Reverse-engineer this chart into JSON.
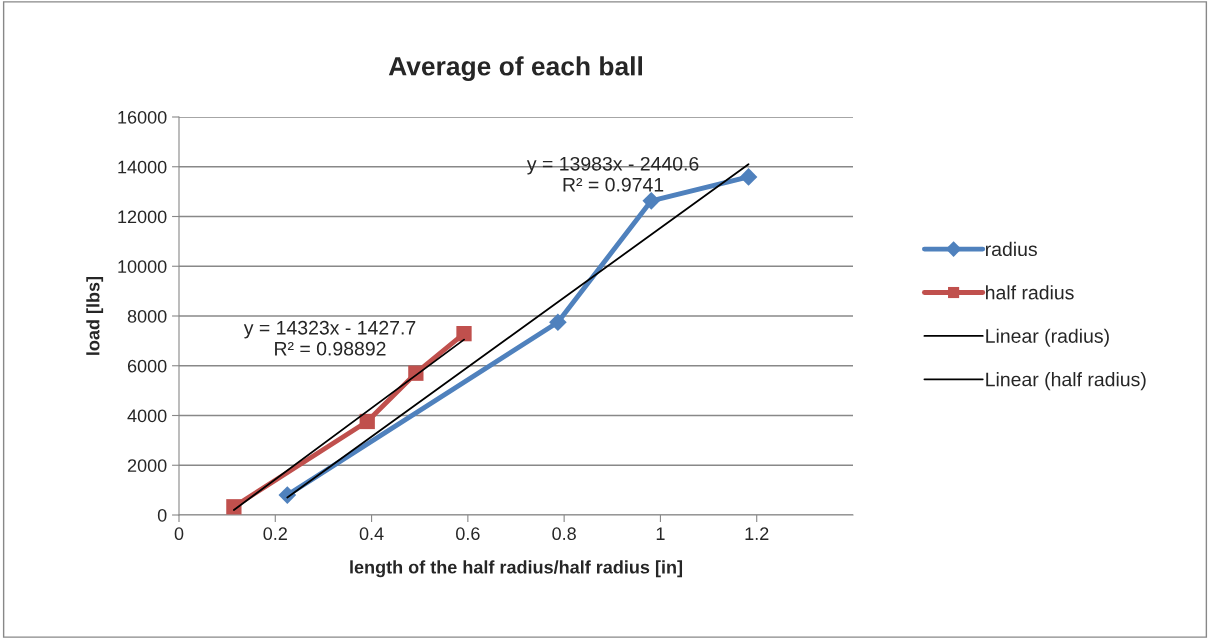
{
  "chart_data": {
    "type": "line",
    "title": "Average of each ball",
    "xlabel": "length of the half radius/half radius [in]",
    "ylabel": "load [lbs]",
    "xlim": [
      0,
      1.4
    ],
    "xticks": [
      0,
      0.2,
      0.4,
      0.6,
      0.8,
      1,
      1.2
    ],
    "ylim": [
      0,
      16000
    ],
    "yticks": [
      0,
      2000,
      4000,
      6000,
      8000,
      10000,
      12000,
      14000,
      16000
    ],
    "grid": "y",
    "legend": "right",
    "series": [
      {
        "name": "radius",
        "color": "#4f81bd",
        "marker": "diamond",
        "x": [
          0.225,
          0.787,
          0.981,
          1.183
        ],
        "values": [
          800,
          7750,
          12630,
          13590
        ]
      },
      {
        "name": "half radius",
        "color": "#c0504d",
        "marker": "square",
        "x": [
          0.114,
          0.391,
          0.492,
          0.592
        ],
        "values": [
          330,
          3760,
          5700,
          7290
        ]
      },
      {
        "name": "Linear (radius)",
        "color": "#000000",
        "marker": "none",
        "x": [
          0.225,
          1.183
        ],
        "values": [
          700,
          14100
        ]
      },
      {
        "name": "Linear (half radius)",
        "color": "#000000",
        "marker": "none",
        "x": [
          0.114,
          0.592
        ],
        "values": [
          200,
          7050
        ]
      }
    ],
    "annotations": [
      "y = 13983x - 2440.6\nR² = 0.9741",
      "y = 14323x - 1427.7\nR² = 0.98892"
    ]
  }
}
